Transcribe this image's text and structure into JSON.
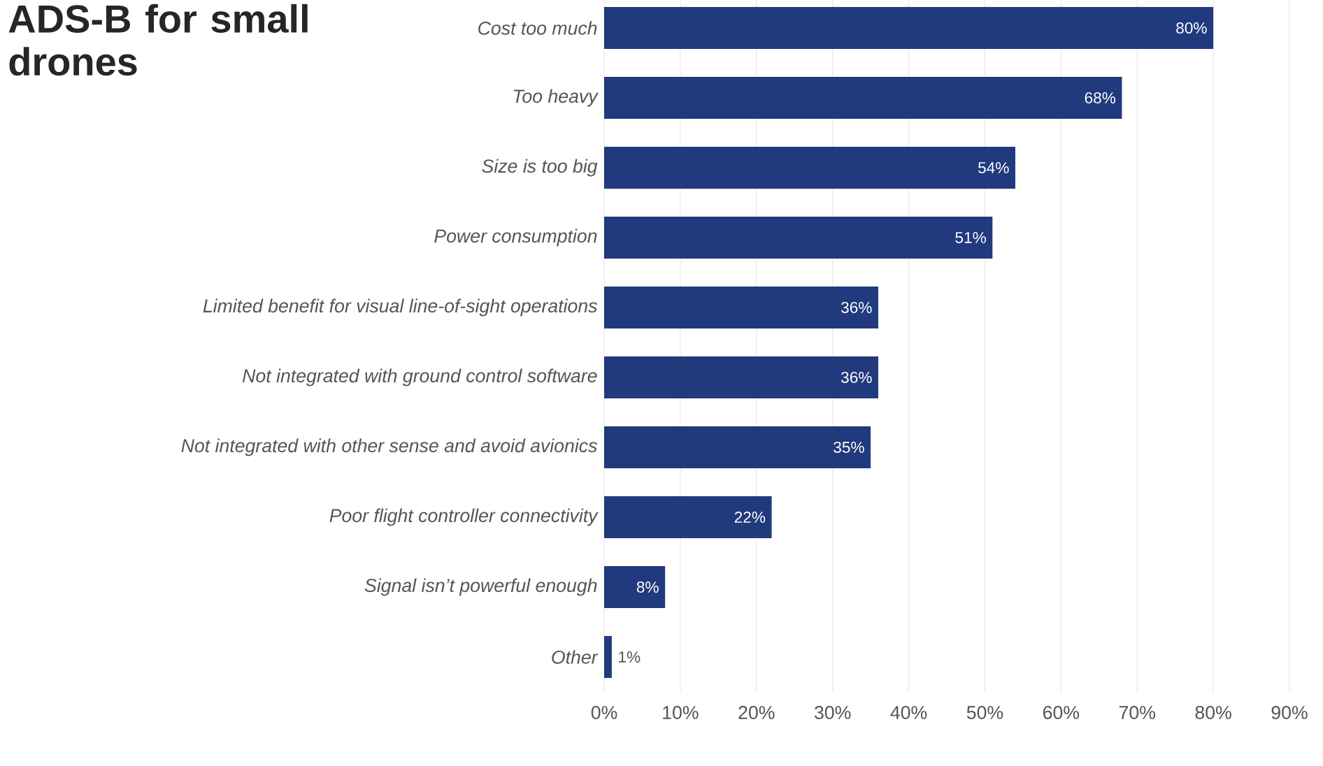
{
  "chart_data": {
    "type": "bar",
    "orientation": "horizontal",
    "title": "ADS-B for small drones",
    "categories": [
      "Cost too much",
      "Too heavy",
      "Size is too big",
      "Power consumption",
      "Limited benefit for visual line-of-sight operations",
      "Not integrated with ground control software",
      "Not integrated with other sense and avoid avionics",
      "Poor flight controller connectivity",
      "Signal isn’t powerful enough",
      "Other"
    ],
    "values": [
      80,
      68,
      54,
      51,
      36,
      36,
      35,
      22,
      8,
      1
    ],
    "value_labels": [
      "80%",
      "68%",
      "54%",
      "51%",
      "36%",
      "36%",
      "35%",
      "22%",
      "8%",
      "1%"
    ],
    "color": "#213a7d",
    "xlim": [
      0,
      90
    ],
    "xticks": [
      {
        "value": 0,
        "label": "0%"
      },
      {
        "value": 10,
        "label": "10%"
      },
      {
        "value": 20,
        "label": "20%"
      },
      {
        "value": 30,
        "label": "30%"
      },
      {
        "value": 40,
        "label": "40%"
      },
      {
        "value": 50,
        "label": "50%"
      },
      {
        "value": 60,
        "label": "60%"
      },
      {
        "value": 70,
        "label": "70%"
      },
      {
        "value": 80,
        "label": "80%"
      },
      {
        "value": 90,
        "label": "90%"
      }
    ],
    "grid": "x"
  }
}
